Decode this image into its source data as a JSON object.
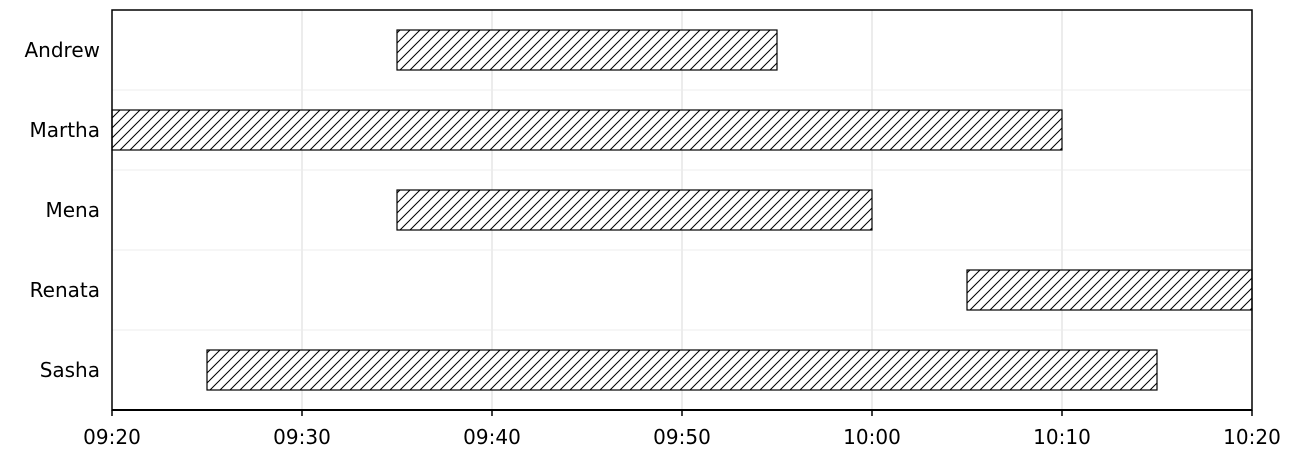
{
  "chart_data": {
    "type": "bar",
    "orientation": "horizontal",
    "bar_style": "hatched",
    "categories": [
      "Andrew",
      "Martha",
      "Mena",
      "Renata",
      "Sasha"
    ],
    "series": [
      {
        "values": [
          {
            "start": "09:35",
            "end": "09:55"
          },
          {
            "start": "09:20",
            "end": "10:10"
          },
          {
            "start": "09:35",
            "end": "10:00"
          },
          {
            "start": "10:05",
            "end": "10:20"
          },
          {
            "start": "09:25",
            "end": "10:15"
          }
        ]
      }
    ],
    "xlim": [
      "09:20",
      "10:20"
    ],
    "x_ticks": [
      "09:20",
      "09:30",
      "09:40",
      "09:50",
      "10:00",
      "10:10",
      "10:20"
    ],
    "title": "",
    "xlabel": "",
    "ylabel": "",
    "grid": true,
    "legend": "none",
    "colors": {
      "bar_fill": "#ffffff",
      "hatch": "#000000",
      "grid": "#d9d9d9",
      "axis": "#000000"
    }
  }
}
